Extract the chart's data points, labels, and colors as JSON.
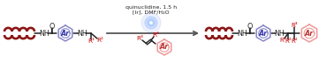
{
  "background": "#ffffff",
  "dna_color": "#8B1515",
  "ring_color": "#8888CC",
  "ring_text_color": "#3333AA",
  "prod_ring_color": "#EE9999",
  "prod_ring_text": "#BB3333",
  "sub_color": "#CC0000",
  "bond_color": "#222222",
  "arrow_color": "#555555",
  "cat_color": "#222222",
  "glow1": "#2255EE",
  "glow2": "#4488FF",
  "glow3": "#99BBFF",
  "figsize": [
    3.78,
    0.8
  ],
  "dpi": 100,
  "ylim": [
    0,
    80
  ],
  "xlim": [
    0,
    378
  ]
}
